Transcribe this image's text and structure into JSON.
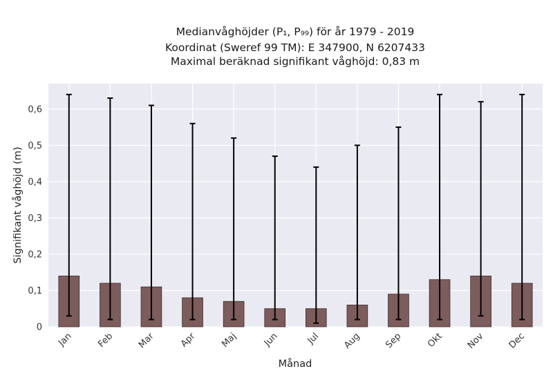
{
  "chart_data": {
    "type": "bar",
    "title_lines": [
      "Medianvåghöjder (P₁, P₉₉) för år 1979 - 2019",
      "Koordinat (Sweref 99 TM): E 347900, N 6207433",
      "Maximal beräknad signifikant våghöjd: 0,83 m"
    ],
    "xlabel": "Månad",
    "ylabel": "Signifikant våghöjd (m)",
    "categories": [
      "Jan",
      "Feb",
      "Mar",
      "Apr",
      "Maj",
      "Jun",
      "Jul",
      "Aug",
      "Sep",
      "Okt",
      "Nov",
      "Dec"
    ],
    "values": [
      0.14,
      0.12,
      0.11,
      0.08,
      0.07,
      0.05,
      0.05,
      0.06,
      0.09,
      0.13,
      0.14,
      0.12
    ],
    "error_low": [
      0.03,
      0.02,
      0.02,
      0.02,
      0.02,
      0.02,
      0.01,
      0.02,
      0.02,
      0.02,
      0.03,
      0.02
    ],
    "error_high": [
      0.64,
      0.63,
      0.61,
      0.56,
      0.52,
      0.47,
      0.44,
      0.5,
      0.55,
      0.64,
      0.62,
      0.64
    ],
    "ylim": [
      0,
      0.67
    ],
    "yticks": [
      0,
      0.1,
      0.2,
      0.3,
      0.4,
      0.5,
      0.6
    ],
    "ytick_labels": [
      "0",
      "0,1",
      "0,2",
      "0,3",
      "0,4",
      "0,5",
      "0,6"
    ],
    "grid": true,
    "colors": {
      "bar": "#7d5c5c",
      "bar_edge": "#3a2a2a",
      "error": "#000000",
      "plot_bg": "#eaeaf2",
      "grid": "#ffffff"
    }
  }
}
